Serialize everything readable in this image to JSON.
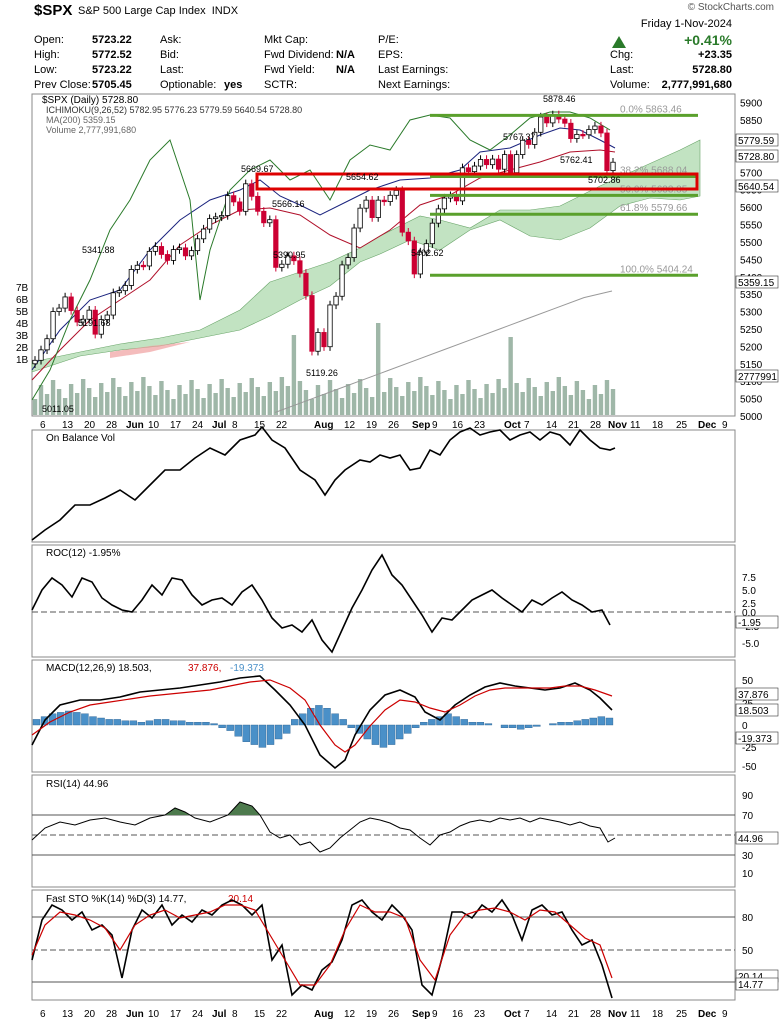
{
  "header": {
    "symbol": "$SPX",
    "name": "S&P 500 Large Cap Index",
    "exchange": "INDX",
    "date": "Friday  1-Nov-2024",
    "change_pct": "+0.41%",
    "brand": "© StockCharts.com",
    "quote": {
      "open_label": "Open:",
      "open": "5723.22",
      "high_label": "High:",
      "high": "5772.52",
      "low_label": "Low:",
      "low": "5723.22",
      "prev_label": "Prev Close:",
      "prev": "5705.45",
      "ask_label": "Ask:",
      "bid_label": "Bid:",
      "last_label": "Last:",
      "optionable_label": "Optionable:",
      "optionable": "yes",
      "mktcap_label": "Mkt Cap:",
      "fwd_div_label": "Fwd Dividend:",
      "fwd_div": "N/A",
      "fwd_yield_label": "Fwd Yield:",
      "fwd_yield": "N/A",
      "sctr_label": "SCTR:",
      "pe_label": "P/E:",
      "eps_label": "EPS:",
      "last_earn_label": "Last Earnings:",
      "next_earn_label": "Next Earnings:",
      "chg_label": "Chg:",
      "chg": "+23.35",
      "last_price_label": "Last:",
      "last_price": "5728.80",
      "volume_label": "Volume:",
      "volume": "2,777,991,680"
    }
  },
  "colors": {
    "up": "#000000",
    "down": "#cc0033",
    "fib": "#5aa02c",
    "cloud": "#8fcc8f",
    "cloud_red": "#f0a0a0",
    "volume": "#9fb7a8",
    "highlight": "#dd0000",
    "macd_hist": "#4a90c8"
  },
  "price_panel": {
    "legend": [
      "$SPX (Daily) 5728.80",
      "ICHIMOKU(9,26,52) 5782.95 5776.23 5779.59 5640.54 5728.80",
      "MA(200) 5359.15",
      "Volume 2,777,991,680"
    ],
    "y_ticks": [
      "5900",
      "5850",
      "5800",
      "5750",
      "5700",
      "5650",
      "5600",
      "5550",
      "5500",
      "5450",
      "5400",
      "5350",
      "5300",
      "5250",
      "5200",
      "5150",
      "5100",
      "5050",
      "5000"
    ],
    "vol_ticks": [
      "7B",
      "6B",
      "5B",
      "4B",
      "3B",
      "2B",
      "1B"
    ],
    "right_labels": [
      "5779.59",
      "5728.80",
      "5640.54",
      "5359.15",
      "2777991"
    ],
    "fib_levels": [
      {
        "label": "0.0% 5863.46",
        "value": 5863.46
      },
      {
        "label": "38.2% 5688.04",
        "value": 5688.04
      },
      {
        "label": "50.0% 5633.85",
        "value": 5633.85
      },
      {
        "label": "61.8% 5579.66",
        "value": 5579.66
      },
      {
        "label": "100.0% 5404.24",
        "value": 5404.24
      }
    ],
    "annotations": [
      "5878.46",
      "5767.37",
      "5762.41",
      "5702.86",
      "5669.67",
      "5654.62",
      "5566.16",
      "5341.88",
      "5390.95",
      "5402.62",
      "5191.68",
      "5119.26",
      "5011.05"
    ]
  },
  "x_axis": [
    "6",
    "13",
    "20",
    "28",
    "Jun",
    "10",
    "17",
    "24",
    "Jul",
    "8",
    "15",
    "22",
    "Aug",
    "12",
    "19",
    "26",
    "Sep",
    "9",
    "16",
    "23",
    "Oct",
    "7",
    "14",
    "21",
    "28",
    "Nov",
    "11",
    "18",
    "25",
    "Dec",
    "9"
  ],
  "obv_panel": {
    "legend": "On Balance Vol"
  },
  "roc_panel": {
    "legend": "ROC(12) -1.95%",
    "y_ticks": [
      "7.5",
      "5.0",
      "2.5",
      "0.0",
      "-2.5",
      "-5.0"
    ],
    "right_label": "-1.95"
  },
  "macd_panel": {
    "legend_a": "MACD(12,26,9) 18.503,",
    "legend_b": "37.876,",
    "legend_c": "-19.373",
    "y_ticks": [
      "50",
      "25",
      "0",
      "-25",
      "-50"
    ],
    "right_labels": [
      "37.876",
      "18.503",
      "-19.373"
    ]
  },
  "rsi_panel": {
    "legend": "RSI(14) 44.96",
    "y_ticks": [
      "90",
      "70",
      "50",
      "30",
      "10"
    ],
    "right_label": "44.96"
  },
  "sto_panel": {
    "legend_a": "Fast STO %K(14) %D(3) 14.77,",
    "legend_b": "20.14",
    "y_ticks": [
      "80",
      "50",
      "20"
    ],
    "right_labels": [
      "20.14",
      "14.77"
    ]
  },
  "chart_data": {
    "type": "line",
    "title": "$SPX (Daily) 5728.80",
    "ylim": [
      5000,
      5925
    ],
    "series": [
      {
        "name": "$SPX (Daily) 5728.80",
        "values": [
          5160,
          5190,
          5222,
          5300,
          5310,
          5342,
          5303,
          5270,
          5278,
          5304,
          5235,
          5277,
          5290,
          5354,
          5360,
          5375,
          5421,
          5433,
          5431,
          5473,
          5487,
          5464,
          5447,
          5478,
          5483,
          5460,
          5475,
          5509,
          5537,
          5567,
          5572,
          5576,
          5633,
          5615,
          5588,
          5667,
          5631,
          5588,
          5555,
          5564,
          5427,
          5436,
          5460,
          5446,
          5410,
          5346,
          5186,
          5240,
          5199,
          5319,
          5344,
          5434,
          5455,
          5540,
          5597,
          5620,
          5570,
          5620,
          5616,
          5634,
          5648,
          5528,
          5503,
          5408,
          5471,
          5495,
          5554,
          5595,
          5626,
          5633,
          5618,
          5713,
          5702,
          5718,
          5737,
          5722,
          5738,
          5709,
          5751,
          5699,
          5751,
          5792,
          5780,
          5815,
          5859,
          5842,
          5865,
          5853,
          5841,
          5797,
          5809,
          5808,
          5823,
          5833,
          5813,
          5705,
          5729
        ]
      },
      {
        "name": "MA(200) 5359.15",
        "values": [
          5010,
          5040,
          5070,
          5100,
          5130,
          5160,
          5190,
          5220,
          5250,
          5280,
          5310,
          5340,
          5359
        ]
      }
    ],
    "fib_retracement": [
      5863.46,
      5688.04,
      5633.85,
      5579.66,
      5404.24
    ]
  }
}
